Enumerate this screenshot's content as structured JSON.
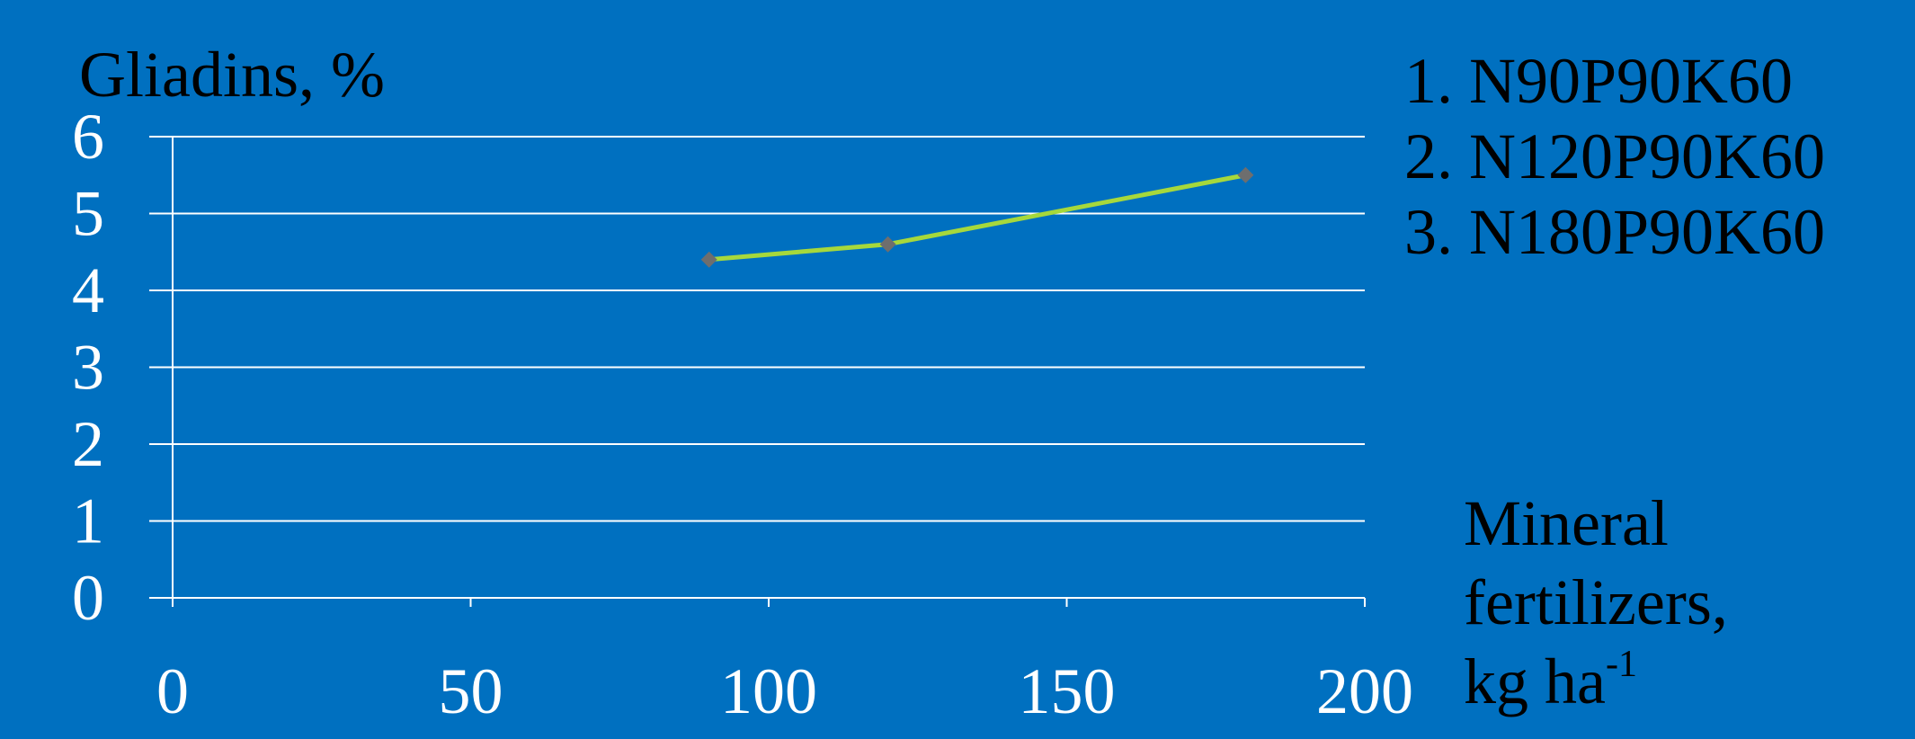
{
  "chart_data": {
    "type": "line",
    "ylabel": "Gliadins, %",
    "xlabel": {
      "line1": "Mineral",
      "line2": "fertilizers,",
      "line3_base": "kg ha",
      "line3_sup": "-1"
    },
    "xlim": [
      0,
      200
    ],
    "ylim": [
      0,
      6
    ],
    "x_ticks": [
      "0",
      "50",
      "100",
      "150",
      "200"
    ],
    "y_ticks": [
      "0",
      "1",
      "2",
      "3",
      "4",
      "5",
      "6"
    ],
    "grid": true,
    "series": [
      {
        "x": [
          90,
          120,
          180
        ],
        "y": [
          4.4,
          4.6,
          5.5
        ]
      }
    ],
    "legend": [
      "1. N90P90K60",
      "2. N120P90K60",
      "3. N180P90K60"
    ],
    "colors": {
      "background": "#0070c0",
      "line": "#a6d83c",
      "marker": "#6e6e6e",
      "grid": "#ffffff",
      "tick_text": "#ffffff",
      "label_text": "#000000"
    }
  }
}
